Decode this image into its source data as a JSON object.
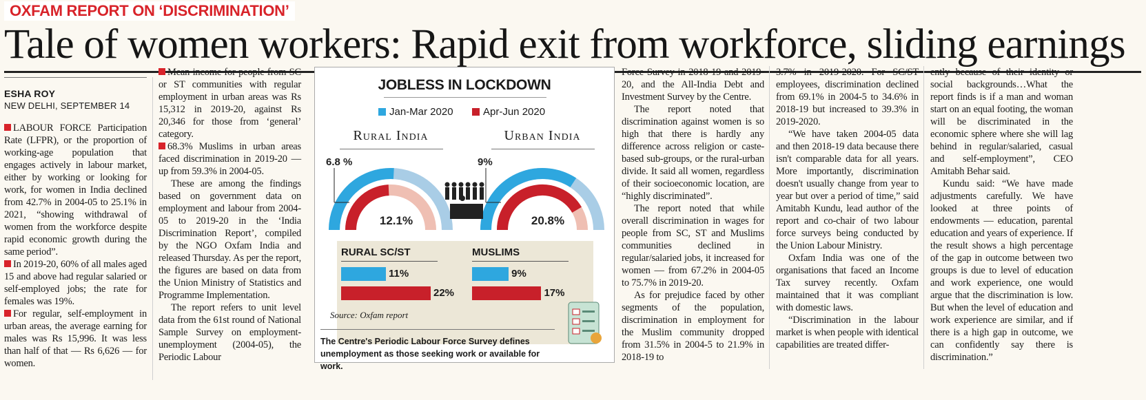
{
  "kicker": "OXFAM REPORT ON ‘DISCRIMINATION’",
  "headline": "Tale of women workers: Rapid exit from workforce, sliding earnings",
  "byline": {
    "author": "ESHA ROY",
    "dateline": "NEW DELHI, SEPTEMBER 14"
  },
  "col1": [
    "LABOUR FORCE Participation Rate (LFPR), or the proportion of working-age population that engages actively in labour market, either by working or looking for work, for women in India declined from 42.7% in 2004-05 to 25.1% in 2021, “showing withdrawal of women from the workforce despite rapid economic growth during the same period”.",
    "In 2019-20, 60% of all males aged 15 and above had regular salaried or self-employed jobs; the rate for females was 19%.",
    "For regular, self-employment in urban areas, the average earning for males was Rs 15,996. It was less than half of that — Rs 6,626 — for women."
  ],
  "col2": [
    "Mean income for people from SC or ST communities with regular employment in urban areas was Rs 15,312 in 2019-20, against Rs 20,346 for those from ‘general’ category.",
    "68.3% Muslims in urban areas faced discrimination in 2019-20 — up from 59.3% in 2004-05.",
    "These are among the findings based on government data on employment and labour from 2004-05 to 2019-20 in the ‘India Discrimination Report’, compiled by the NGO Oxfam India and released Thursday. As per the report, the figures are based on data from the Union Ministry of Statistics and Programme Implementation.",
    "The report refers to unit level data from the 61st round of National Sample Survey on employment-unemployment (2004-05), the Periodic Labour"
  ],
  "col3": [
    "Force Survey in 2018-19 and 2019-20, and the All-India Debt and Investment Survey by the Centre.",
    "The report noted that discrimination against women is so high that there is hardly any difference across religion or caste-based sub-groups, or the rural-urban divide. It said all women, regardless of their socioeconomic location, are “highly discriminated”.",
    "The report noted that while overall discrimination in wages for people from SC, ST and Muslims communities declined in regular/salaried jobs, it increased for women — from 67.2% in 2004-05 to 75.7% in 2019-20.",
    "As for prejudice faced by other segments of the population, discrimination in employment for the Muslim community dropped from 31.5% in 2004-5 to 21.9% in 2018-19 to"
  ],
  "col4": [
    "3.7% in 2019-2020. For SC/ST employees, discrimination declined from 69.1% in 2004-5 to 34.6% in 2018-19 but increased to 39.3% in 2019-2020.",
    "“We have taken 2004-05 data and then 2018-19 data because there isn't comparable data for all years. More importantly, discrimination doesn't usually change from year to year but over a period of time,” said Amitabh Kundu, lead author of the report and co-chair of two labour force surveys being conducted by the Union Labour Ministry.",
    "Oxfam India was one of the organisations that faced an Income Tax survey recently. Oxfam maintained that it was compliant with domestic laws.",
    "“Discrimination in the labour market is when people with identical capabilities are treated differ-"
  ],
  "col5": [
    "ently because of their identity or social backgrounds…What the report finds is if a man and woman start on an equal footing, the woman will be discriminated in the economic sphere where she will lag behind in regular/salaried, casual and self-employment”, CEO Amitabh Behar said.",
    "Kundu said: “We have made adjustments carefully. We have looked at three points of endowments — education, parental education and years of experience. If the result shows a high percentage of the gap in outcome between two groups is due to level of education and work experience, one would argue that the discrimination is low. But when the level of education and work experience are similar, and if there is a high gap in outcome, we can confidently say there is discrimination.”"
  ],
  "colors": {
    "q1": "#2ea7df",
    "q2": "#c8202a",
    "accent": "#d8232a",
    "panel": "#ece7d7",
    "arcbg": "#a9cde6",
    "arcbg2": "#efbfb3"
  },
  "chart_data": {
    "type": "bar",
    "title": "JOBLESS IN LOCKDOWN",
    "legend": [
      "Jan-Mar 2020",
      "Apr-Jun 2020"
    ],
    "regions": [
      {
        "name": "Rural India",
        "q1_label": "6.8 %",
        "q2_label": "12.1%",
        "q1": 6.8,
        "q2": 12.1
      },
      {
        "name": "Urban India",
        "q1_label": "9%",
        "q2_label": "20.8%",
        "q1": 9,
        "q2": 20.8
      }
    ],
    "groups": [
      {
        "name": "RURAL SC/ST",
        "values": [
          11,
          22
        ],
        "labels": [
          "11%",
          "22%"
        ]
      },
      {
        "name": "MUSLIMS",
        "values": [
          9,
          17
        ],
        "labels": [
          "9%",
          "17%"
        ]
      }
    ],
    "source": "Source: Oxfam report",
    "definition": "The Centre's Periodic Labour Force Survey defines unemployment as those seeking work or available for work."
  }
}
